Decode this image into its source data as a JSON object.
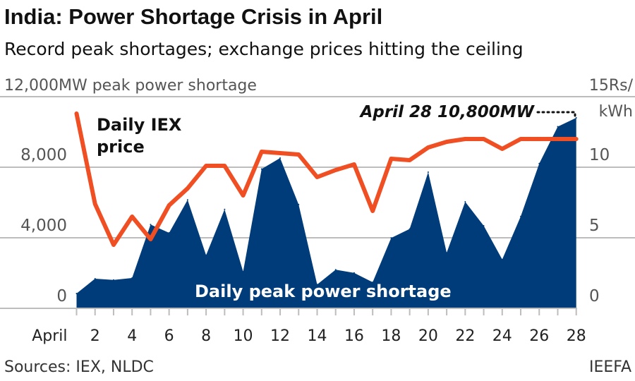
{
  "title": "India: Power Shortage Crisis in April",
  "subtitle": "Record peak shortages; exchange prices hitting the ceiling",
  "source": "Sources: IEX, NLDC",
  "credit": "IEEFA",
  "colors": {
    "shortage": "#003c7a",
    "price": "#f04e23",
    "grid": "#bdbdbd"
  },
  "chart_data": {
    "type": "area+line",
    "x_label_first": "April",
    "x": [
      1,
      2,
      3,
      4,
      5,
      6,
      7,
      8,
      9,
      10,
      11,
      12,
      13,
      14,
      15,
      16,
      17,
      18,
      19,
      20,
      21,
      22,
      23,
      24,
      25,
      26,
      27,
      28
    ],
    "x_tick_labels": [
      "April",
      "2",
      "4",
      "6",
      "8",
      "10",
      "12",
      "14",
      "16",
      "18",
      "20",
      "22",
      "24",
      "26",
      "28"
    ],
    "left_axis": {
      "label": "12,000MW peak power shortage",
      "ylim": [
        0,
        12000
      ],
      "ticks": [
        "0",
        "4,000",
        "8,000"
      ]
    },
    "right_axis": {
      "label_line1": "15Rs/",
      "label_line2": "kWh",
      "ylim": [
        0,
        15
      ],
      "ticks": [
        "0",
        "5",
        "10"
      ]
    },
    "grid": true,
    "series": [
      {
        "name": "Daily peak power shortage",
        "type": "area",
        "axis": "left",
        "values": [
          840,
          1680,
          1610,
          1720,
          4750,
          4280,
          6150,
          3010,
          5610,
          2080,
          7900,
          8520,
          5880,
          1350,
          2190,
          2010,
          1480,
          3990,
          4500,
          7720,
          3150,
          6040,
          4680,
          2770,
          5210,
          8210,
          10300,
          10800
        ]
      },
      {
        "name": "Daily IEX price",
        "name_line1": "Daily IEX",
        "name_line2": "price",
        "type": "line",
        "axis": "right",
        "values": [
          13.8,
          7.4,
          4.5,
          6.5,
          4.9,
          7.3,
          8.5,
          10.1,
          10.1,
          8.0,
          11.1,
          11.0,
          10.9,
          9.3,
          9.8,
          10.2,
          6.9,
          10.6,
          10.5,
          11.4,
          11.8,
          12.0,
          12.0,
          11.3,
          12.0,
          12.0,
          12.0,
          12.0
        ]
      }
    ],
    "annotation": "April 28 10,800MW"
  }
}
